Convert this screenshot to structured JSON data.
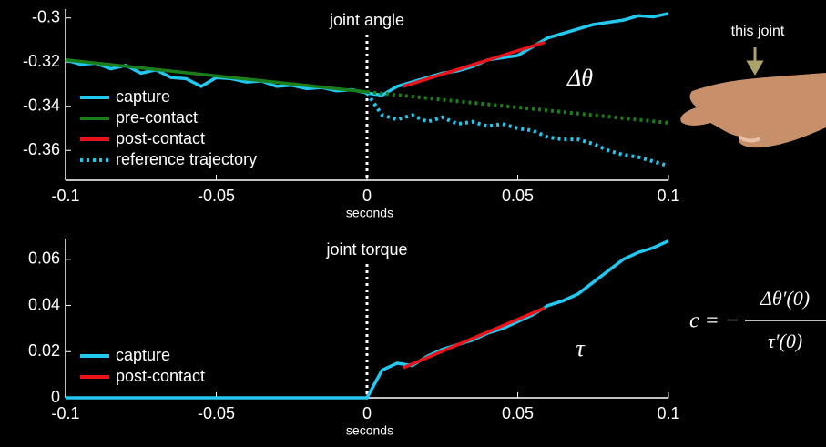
{
  "chart_data": [
    {
      "type": "line",
      "title": "joint angle",
      "xlabel": "seconds",
      "x": [
        -0.1,
        -0.095,
        -0.09,
        -0.085,
        -0.08,
        -0.075,
        -0.07,
        -0.065,
        -0.06,
        -0.055,
        -0.05,
        -0.045,
        -0.04,
        -0.035,
        -0.03,
        -0.025,
        -0.02,
        -0.015,
        -0.01,
        -0.005,
        0,
        0.005,
        0.01,
        0.015,
        0.02,
        0.025,
        0.03,
        0.035,
        0.04,
        0.045,
        0.05,
        0.055,
        0.06,
        0.065,
        0.07,
        0.075,
        0.08,
        0.085,
        0.09,
        0.095,
        0.1
      ],
      "series": [
        {
          "name": "capture",
          "color": "#22c8f0",
          "style": "solid",
          "values": [
            -0.319,
            -0.321,
            -0.3205,
            -0.323,
            -0.3215,
            -0.325,
            -0.3235,
            -0.327,
            -0.3275,
            -0.331,
            -0.327,
            -0.3275,
            -0.329,
            -0.3285,
            -0.331,
            -0.3305,
            -0.332,
            -0.3315,
            -0.333,
            -0.3325,
            -0.334,
            -0.335,
            -0.331,
            -0.329,
            -0.327,
            -0.325,
            -0.324,
            -0.322,
            -0.319,
            -0.318,
            -0.317,
            -0.313,
            -0.309,
            -0.307,
            -0.305,
            -0.303,
            -0.302,
            -0.301,
            -0.299,
            -0.2995,
            -0.298
          ]
        },
        {
          "name": "pre-contact",
          "color": "#1a7f1a",
          "style": "solid",
          "x": [
            -0.1,
            0
          ],
          "values": [
            -0.319,
            -0.3335
          ]
        },
        {
          "name": "post-contact",
          "color": "#e8141a",
          "style": "solid",
          "x": [
            0.012,
            0.059
          ],
          "values": [
            -0.331,
            -0.311
          ]
        },
        {
          "name": "reference trajectory",
          "color": "#22c8f0",
          "style": "dotted",
          "values": [
            null,
            null,
            null,
            null,
            null,
            null,
            null,
            null,
            null,
            null,
            null,
            null,
            null,
            null,
            null,
            null,
            null,
            null,
            null,
            null,
            -0.334,
            -0.344,
            -0.346,
            -0.344,
            -0.347,
            -0.345,
            -0.348,
            -0.347,
            -0.349,
            -0.348,
            -0.35,
            -0.351,
            -0.354,
            -0.355,
            -0.355,
            -0.357,
            -0.36,
            -0.362,
            -0.363,
            -0.365,
            -0.367
          ]
        },
        {
          "color": "#1a7f1a",
          "style": "dotted",
          "x": [
            0,
            0.1
          ],
          "values": [
            -0.3335,
            -0.3475
          ]
        }
      ],
      "xlim": [
        -0.1,
        0.1
      ],
      "xticks": [
        -0.1,
        -0.05,
        0,
        0.05,
        0.1
      ],
      "ylim": [
        -0.3735,
        -0.296
      ],
      "yticks": [
        -0.3,
        -0.32,
        -0.34,
        -0.36
      ],
      "vline_x": 0,
      "legend": "left"
    },
    {
      "type": "line",
      "title": "joint torque",
      "xlabel": "seconds",
      "x": [
        -0.1,
        -0.095,
        -0.09,
        -0.085,
        -0.08,
        -0.075,
        -0.07,
        -0.065,
        -0.06,
        -0.055,
        -0.05,
        -0.045,
        -0.04,
        -0.035,
        -0.03,
        -0.025,
        -0.02,
        -0.015,
        -0.01,
        -0.005,
        0,
        0.005,
        0.01,
        0.015,
        0.02,
        0.025,
        0.03,
        0.035,
        0.04,
        0.045,
        0.05,
        0.055,
        0.06,
        0.065,
        0.07,
        0.075,
        0.08,
        0.085,
        0.09,
        0.095,
        0.1
      ],
      "series": [
        {
          "name": "capture",
          "color": "#22c8f0",
          "style": "solid",
          "values": [
            0,
            0,
            0,
            0,
            0,
            0,
            0,
            0,
            0,
            0,
            0,
            0,
            0,
            0,
            0,
            0,
            0,
            0,
            0,
            0,
            0,
            0.012,
            0.015,
            0.014,
            0.018,
            0.021,
            0.023,
            0.025,
            0.028,
            0.03,
            0.033,
            0.036,
            0.04,
            0.042,
            0.045,
            0.05,
            0.055,
            0.06,
            0.063,
            0.065,
            0.068
          ]
        },
        {
          "name": "post-contact",
          "color": "#e8141a",
          "style": "solid",
          "x": [
            0.012,
            0.059
          ],
          "values": [
            0.013,
            0.039
          ]
        }
      ],
      "xlim": [
        -0.1,
        0.1
      ],
      "xticks": [
        -0.1,
        -0.05,
        0,
        0.05,
        0.1
      ],
      "ylim": [
        0,
        0.069
      ],
      "yticks": [
        0,
        0.02,
        0.04,
        0.06
      ],
      "vline_x": 0,
      "legend": "left"
    }
  ],
  "annotations": {
    "delta_theta": "Δθ",
    "tau": "τ",
    "this_joint": "this joint",
    "formula": {
      "lhs": "c = −",
      "numerator": "Δθ′(0)",
      "denominator": "τ′(0)"
    }
  }
}
